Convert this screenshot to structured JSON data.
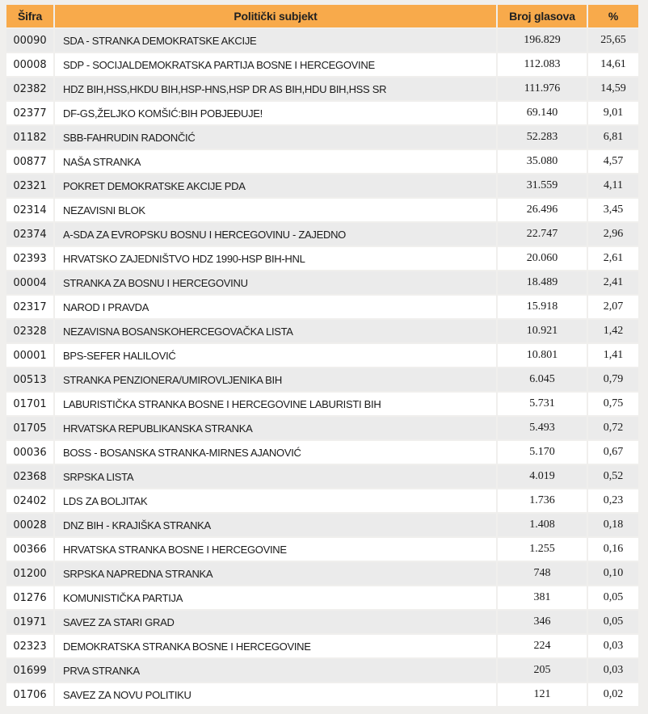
{
  "colors": {
    "header_bg": "#F8AA4B",
    "header_text": "#212121",
    "row_odd_bg": "#EBEBEB",
    "row_even_bg": "#FFFFFF",
    "page_bg": "#F0EFED",
    "cell_text": "#1A1A1A"
  },
  "table": {
    "columns": [
      "Šifra",
      "Politički subjekt",
      "Broj glasova",
      "%"
    ],
    "rows": [
      {
        "code": "00090",
        "name": "SDA - STRANKA DEMOKRATSKE AKCIJE",
        "votes": "196.829",
        "pct": "25,65"
      },
      {
        "code": "00008",
        "name": "SDP - SOCIJALDEMOKRATSKA PARTIJA BOSNE I HERCEGOVINE",
        "votes": "112.083",
        "pct": "14,61"
      },
      {
        "code": "02382",
        "name": "HDZ BIH,HSS,HKDU BIH,HSP-HNS,HSP DR AS BIH,HDU BIH,HSS SR",
        "votes": "111.976",
        "pct": "14,59"
      },
      {
        "code": "02377",
        "name": "DF-GS,ŽELJKO KOMŠIĆ:BIH POBJEĐUJE!",
        "votes": "69.140",
        "pct": "9,01"
      },
      {
        "code": "01182",
        "name": "SBB-FAHRUDIN RADONČIĆ",
        "votes": "52.283",
        "pct": "6,81"
      },
      {
        "code": "00877",
        "name": "NAŠA STRANKA",
        "votes": "35.080",
        "pct": "4,57"
      },
      {
        "code": "02321",
        "name": "POKRET DEMOKRATSKE AKCIJE PDA",
        "votes": "31.559",
        "pct": "4,11"
      },
      {
        "code": "02314",
        "name": "NEZAVISNI BLOK",
        "votes": "26.496",
        "pct": "3,45"
      },
      {
        "code": "02374",
        "name": "A-SDA ZA EVROPSKU BOSNU I HERCEGOVINU - ZAJEDNO",
        "votes": "22.747",
        "pct": "2,96"
      },
      {
        "code": "02393",
        "name": "HRVATSKO ZAJEDNIŠTVO HDZ 1990-HSP BIH-HNL",
        "votes": "20.060",
        "pct": "2,61"
      },
      {
        "code": "00004",
        "name": "STRANKA ZA BOSNU I HERCEGOVINU",
        "votes": "18.489",
        "pct": "2,41"
      },
      {
        "code": "02317",
        "name": "NAROD I PRAVDA",
        "votes": "15.918",
        "pct": "2,07"
      },
      {
        "code": "02328",
        "name": "NEZAVISNA BOSANSKOHERCEGOVAČKA LISTA",
        "votes": "10.921",
        "pct": "1,42"
      },
      {
        "code": "00001",
        "name": "BPS-SEFER HALILOVIĆ",
        "votes": "10.801",
        "pct": "1,41"
      },
      {
        "code": "00513",
        "name": "STRANKA PENZIONERA/UMIROVLJENIKA BIH",
        "votes": "6.045",
        "pct": "0,79"
      },
      {
        "code": "01701",
        "name": "LABURISTIČKA STRANKA BOSNE I HERCEGOVINE LABURISTI BIH",
        "votes": "5.731",
        "pct": "0,75"
      },
      {
        "code": "01705",
        "name": "HRVATSKA REPUBLIKANSKA STRANKA",
        "votes": "5.493",
        "pct": "0,72"
      },
      {
        "code": "00036",
        "name": "BOSS - BOSANSKA STRANKA-MIRNES AJANOVIĆ",
        "votes": "5.170",
        "pct": "0,67"
      },
      {
        "code": "02368",
        "name": "SRPSKA LISTA",
        "votes": "4.019",
        "pct": "0,52"
      },
      {
        "code": "02402",
        "name": "LDS ZA BOLJITAK",
        "votes": "1.736",
        "pct": "0,23"
      },
      {
        "code": "00028",
        "name": "DNZ BIH - KRAJIŠKA STRANKA",
        "votes": "1.408",
        "pct": "0,18"
      },
      {
        "code": "00366",
        "name": "HRVATSKA STRANKA BOSNE I HERCEGOVINE",
        "votes": "1.255",
        "pct": "0,16"
      },
      {
        "code": "01200",
        "name": "SRPSKA NAPREDNA STRANKA",
        "votes": "748",
        "pct": "0,10"
      },
      {
        "code": "01276",
        "name": "KOMUNISTIČKA PARTIJA",
        "votes": "381",
        "pct": "0,05"
      },
      {
        "code": "01971",
        "name": "SAVEZ ZA STARI GRAD",
        "votes": "346",
        "pct": "0,05"
      },
      {
        "code": "02323",
        "name": "DEMOKRATSKA STRANKA BOSNE I HERCEGOVINE",
        "votes": "224",
        "pct": "0,03"
      },
      {
        "code": "01699",
        "name": "PRVA STRANKA",
        "votes": "205",
        "pct": "0,03"
      },
      {
        "code": "01706",
        "name": "SAVEZ ZA NOVU POLITIKU",
        "votes": "121",
        "pct": "0,02"
      }
    ]
  }
}
